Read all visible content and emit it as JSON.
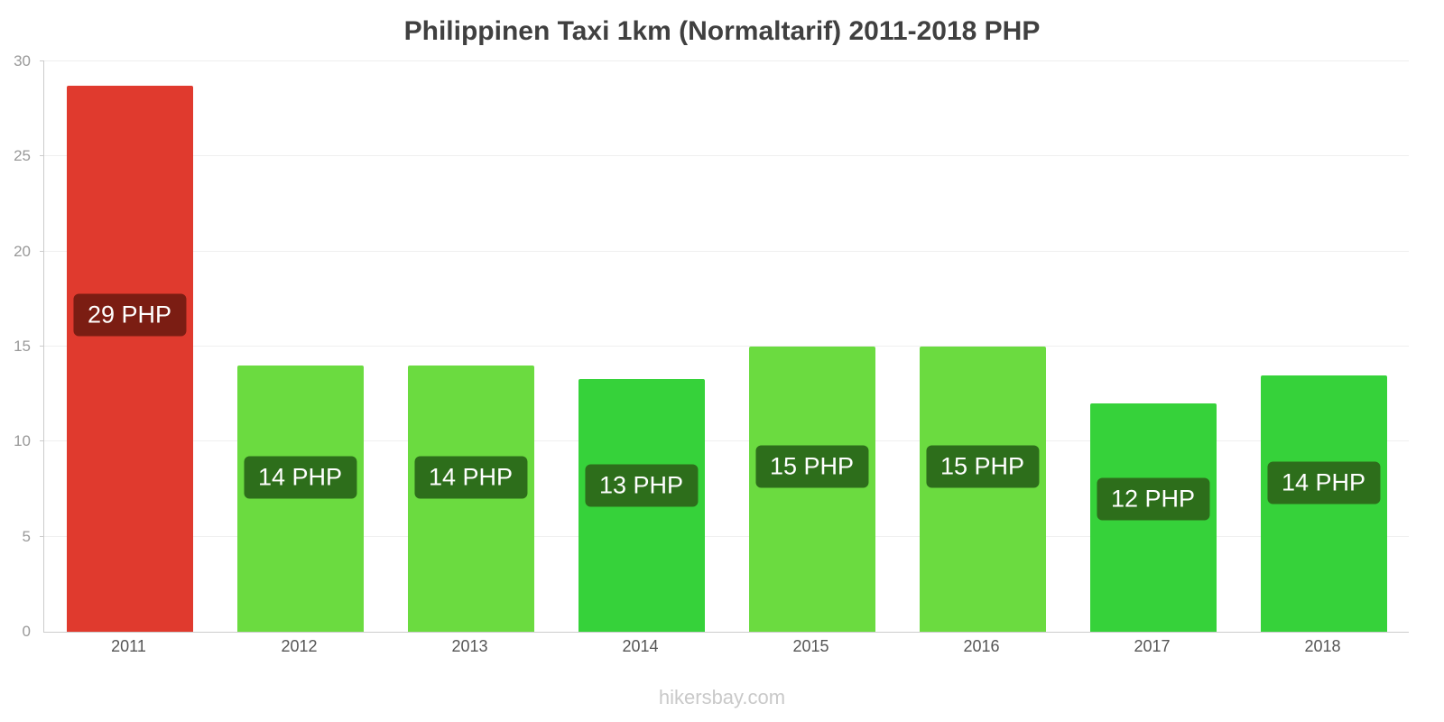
{
  "title": "Philippinen Taxi 1km (Normaltarif) 2011-2018 PHP",
  "footer": {
    "text": "hikersbay.com"
  },
  "chart_data": {
    "type": "bar",
    "title": "Philippinen Taxi 1km (Normaltarif) 2011-2018 PHP",
    "categories": [
      "2011",
      "2012",
      "2013",
      "2014",
      "2015",
      "2016",
      "2017",
      "2018"
    ],
    "values": [
      28.7,
      14,
      14,
      13.3,
      15,
      15,
      12,
      13.5
    ],
    "bar_labels": [
      "29 PHP",
      "14 PHP",
      "14 PHP",
      "13 PHP",
      "15 PHP",
      "15 PHP",
      "12 PHP",
      "14 PHP"
    ],
    "bar_colors": [
      "#e03a2e",
      "#6bdb40",
      "#6bdb40",
      "#36d23a",
      "#6bdb40",
      "#6bdb40",
      "#36d23a",
      "#36d23a"
    ],
    "label_bg_colors": [
      "#7b1d13",
      "#2d6e1b",
      "#2d6e1b",
      "#2d6e1b",
      "#2d6e1b",
      "#2d6e1b",
      "#2d6e1b",
      "#2d6e1b"
    ],
    "xlabel": "",
    "ylabel": "",
    "ylim": [
      0,
      30
    ],
    "yticks": [
      0,
      5,
      10,
      15,
      20,
      25,
      30
    ],
    "grid": true,
    "legend_position": "none",
    "footer_text": "hikersbay.com"
  }
}
